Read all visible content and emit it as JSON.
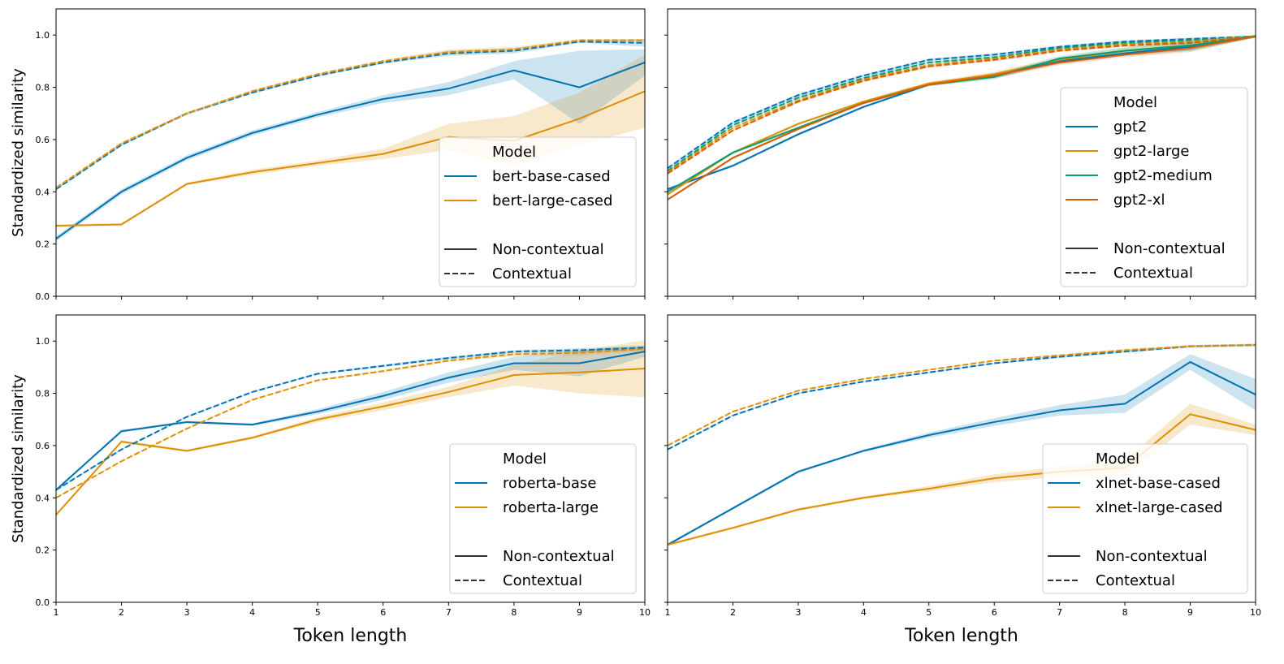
{
  "colors": {
    "blue": "#0173b2",
    "orange": "#de8f05",
    "green": "#029e73",
    "vermillion": "#d55e00"
  },
  "chart_data": [
    {
      "type": "line",
      "panel": "top-left",
      "ylabel": "Standardized similarity",
      "xlabel": "",
      "x": [
        1,
        2,
        3,
        4,
        5,
        6,
        7,
        8,
        9,
        10
      ],
      "xlim": [
        1,
        10
      ],
      "ylim": [
        0,
        1.1
      ],
      "yticks": [
        0.0,
        0.2,
        0.4,
        0.6,
        0.8,
        1.0
      ],
      "show_xtick_labels": false,
      "show_ytick_labels": true,
      "legend": {
        "title": "Model",
        "placement": "lower-right",
        "style_entries": [
          "Non-contextual",
          "Contextual"
        ]
      },
      "series": [
        {
          "name": "bert-base-cased",
          "style": "Non-contextual",
          "color": "#0173b2",
          "values": [
            0.22,
            0.4,
            0.53,
            0.625,
            0.695,
            0.755,
            0.795,
            0.865,
            0.8,
            0.895
          ],
          "ci": [
            0.01,
            0.01,
            0.01,
            0.01,
            0.01,
            0.015,
            0.025,
            0.035,
            0.14,
            0.05
          ]
        },
        {
          "name": "bert-large-cased",
          "style": "Non-contextual",
          "color": "#de8f05",
          "values": [
            0.27,
            0.275,
            0.43,
            0.475,
            0.51,
            0.545,
            0.61,
            0.595,
            0.68,
            0.785
          ],
          "ci": [
            0.005,
            0.005,
            0.005,
            0.01,
            0.01,
            0.02,
            0.05,
            0.095,
            0.1,
            0.14
          ]
        },
        {
          "name": "bert-base-cased",
          "style": "Contextual",
          "color": "#0173b2",
          "values": [
            0.41,
            0.58,
            0.7,
            0.78,
            0.845,
            0.895,
            0.93,
            0.94,
            0.975,
            0.97
          ],
          "ci": [
            0.005,
            0.005,
            0.005,
            0.005,
            0.005,
            0.005,
            0.01,
            0.01,
            0.005,
            0.015
          ]
        },
        {
          "name": "bert-large-cased",
          "style": "Contextual",
          "color": "#de8f05",
          "values": [
            0.415,
            0.585,
            0.7,
            0.785,
            0.85,
            0.9,
            0.935,
            0.945,
            0.98,
            0.98
          ],
          "ci": [
            0.005,
            0.005,
            0.005,
            0.005,
            0.005,
            0.005,
            0.01,
            0.01,
            0.005,
            0.005
          ]
        }
      ]
    },
    {
      "type": "line",
      "panel": "top-right",
      "ylabel": "",
      "xlabel": "",
      "x": [
        1,
        2,
        3,
        4,
        5,
        6,
        7,
        8,
        9,
        10
      ],
      "xlim": [
        1,
        10
      ],
      "ylim": [
        0,
        1.1
      ],
      "yticks": [
        0.0,
        0.2,
        0.4,
        0.6,
        0.8,
        1.0
      ],
      "show_xtick_labels": false,
      "show_ytick_labels": false,
      "legend": {
        "title": "Model",
        "placement": "lower-right",
        "style_entries": [
          "Non-contextual",
          "Contextual"
        ]
      },
      "series": [
        {
          "name": "gpt2",
          "style": "Non-contextual",
          "color": "#0173b2",
          "values": [
            0.41,
            0.5,
            0.62,
            0.725,
            0.81,
            0.845,
            0.9,
            0.93,
            0.955,
            0.995
          ],
          "ci": [
            0.005,
            0.005,
            0.005,
            0.005,
            0.005,
            0.01,
            0.01,
            0.01,
            0.015,
            0.005
          ]
        },
        {
          "name": "gpt2-large",
          "style": "Non-contextual",
          "color": "#de8f05",
          "values": [
            0.39,
            0.55,
            0.66,
            0.745,
            0.815,
            0.85,
            0.905,
            0.94,
            0.96,
            0.995
          ],
          "ci": [
            0.005,
            0.005,
            0.005,
            0.005,
            0.005,
            0.01,
            0.01,
            0.01,
            0.015,
            0.005
          ]
        },
        {
          "name": "gpt2-medium",
          "style": "Non-contextual",
          "color": "#029e73",
          "values": [
            0.4,
            0.55,
            0.645,
            0.74,
            0.81,
            0.84,
            0.91,
            0.94,
            0.96,
            0.995
          ],
          "ci": [
            0.005,
            0.005,
            0.005,
            0.005,
            0.005,
            0.01,
            0.01,
            0.015,
            0.02,
            0.005
          ]
        },
        {
          "name": "gpt2-xl",
          "style": "Non-contextual",
          "color": "#d55e00",
          "values": [
            0.37,
            0.53,
            0.64,
            0.74,
            0.81,
            0.845,
            0.895,
            0.925,
            0.95,
            0.995
          ],
          "ci": [
            0.005,
            0.005,
            0.005,
            0.005,
            0.005,
            0.01,
            0.01,
            0.01,
            0.015,
            0.005
          ]
        },
        {
          "name": "gpt2",
          "style": "Contextual",
          "color": "#0173b2",
          "values": [
            0.49,
            0.665,
            0.77,
            0.845,
            0.905,
            0.925,
            0.955,
            0.975,
            0.985,
            0.995
          ],
          "ci": [
            0.005,
            0.005,
            0.005,
            0.005,
            0.005,
            0.005,
            0.005,
            0.005,
            0.005,
            0.003
          ]
        },
        {
          "name": "gpt2-medium",
          "style": "Contextual",
          "color": "#029e73",
          "values": [
            0.48,
            0.655,
            0.76,
            0.835,
            0.895,
            0.915,
            0.95,
            0.97,
            0.98,
            0.995
          ],
          "ci": [
            0.005,
            0.005,
            0.005,
            0.005,
            0.005,
            0.005,
            0.005,
            0.005,
            0.005,
            0.003
          ]
        },
        {
          "name": "gpt2-large",
          "style": "Contextual",
          "color": "#de8f05",
          "values": [
            0.475,
            0.645,
            0.75,
            0.83,
            0.885,
            0.91,
            0.945,
            0.965,
            0.975,
            0.995
          ],
          "ci": [
            0.005,
            0.005,
            0.005,
            0.005,
            0.005,
            0.005,
            0.005,
            0.005,
            0.005,
            0.003
          ]
        },
        {
          "name": "gpt2-xl",
          "style": "Contextual",
          "color": "#d55e00",
          "values": [
            0.47,
            0.635,
            0.745,
            0.825,
            0.88,
            0.905,
            0.94,
            0.96,
            0.97,
            0.995
          ],
          "ci": [
            0.005,
            0.005,
            0.005,
            0.005,
            0.005,
            0.005,
            0.005,
            0.005,
            0.005,
            0.003
          ]
        }
      ]
    },
    {
      "type": "line",
      "panel": "bottom-left",
      "ylabel": "Standardized similarity",
      "xlabel": "Token length",
      "x": [
        1,
        2,
        3,
        4,
        5,
        6,
        7,
        8,
        9,
        10
      ],
      "xlim": [
        1,
        10
      ],
      "ylim": [
        0,
        1.1
      ],
      "yticks": [
        0.0,
        0.2,
        0.4,
        0.6,
        0.8,
        1.0
      ],
      "show_xtick_labels": true,
      "show_ytick_labels": true,
      "legend": {
        "title": "Model",
        "placement": "lower-right",
        "style_entries": [
          "Non-contextual",
          "Contextual"
        ]
      },
      "series": [
        {
          "name": "roberta-base",
          "style": "Non-contextual",
          "color": "#0173b2",
          "values": [
            0.43,
            0.655,
            0.69,
            0.68,
            0.73,
            0.79,
            0.86,
            0.915,
            0.915,
            0.96
          ],
          "ci": [
            0.005,
            0.005,
            0.005,
            0.005,
            0.01,
            0.015,
            0.02,
            0.025,
            0.05,
            0.02
          ]
        },
        {
          "name": "roberta-large",
          "style": "Non-contextual",
          "color": "#de8f05",
          "values": [
            0.335,
            0.615,
            0.58,
            0.63,
            0.7,
            0.75,
            0.805,
            0.87,
            0.88,
            0.895
          ],
          "ci": [
            0.005,
            0.005,
            0.005,
            0.005,
            0.01,
            0.015,
            0.02,
            0.04,
            0.08,
            0.11
          ]
        },
        {
          "name": "roberta-base",
          "style": "Contextual",
          "color": "#0173b2",
          "values": [
            0.43,
            0.585,
            0.71,
            0.805,
            0.875,
            0.905,
            0.935,
            0.96,
            0.965,
            0.975
          ],
          "ci": [
            0.003,
            0.003,
            0.003,
            0.003,
            0.003,
            0.005,
            0.005,
            0.005,
            0.008,
            0.008
          ]
        },
        {
          "name": "roberta-large",
          "style": "Contextual",
          "color": "#de8f05",
          "values": [
            0.4,
            0.54,
            0.665,
            0.775,
            0.85,
            0.885,
            0.925,
            0.95,
            0.955,
            0.97
          ],
          "ci": [
            0.003,
            0.003,
            0.003,
            0.003,
            0.003,
            0.005,
            0.005,
            0.008,
            0.01,
            0.01
          ]
        }
      ]
    },
    {
      "type": "line",
      "panel": "bottom-right",
      "ylabel": "",
      "xlabel": "Token length",
      "x": [
        1,
        2,
        3,
        4,
        5,
        6,
        7,
        8,
        9,
        10
      ],
      "xlim": [
        1,
        10
      ],
      "ylim": [
        0,
        1.1
      ],
      "yticks": [
        0.0,
        0.2,
        0.4,
        0.6,
        0.8,
        1.0
      ],
      "show_xtick_labels": true,
      "show_ytick_labels": false,
      "legend": {
        "title": "Model",
        "placement": "lower-right",
        "style_entries": [
          "Non-contextual",
          "Contextual"
        ]
      },
      "series": [
        {
          "name": "xlnet-base-cased",
          "style": "Non-contextual",
          "color": "#0173b2",
          "values": [
            0.22,
            0.36,
            0.5,
            0.58,
            0.64,
            0.69,
            0.735,
            0.76,
            0.92,
            0.795
          ],
          "ci": [
            0.005,
            0.005,
            0.005,
            0.005,
            0.01,
            0.015,
            0.02,
            0.035,
            0.03,
            0.06
          ]
        },
        {
          "name": "xlnet-large-cased",
          "style": "Non-contextual",
          "color": "#de8f05",
          "values": [
            0.22,
            0.285,
            0.355,
            0.4,
            0.435,
            0.475,
            0.5,
            0.515,
            0.72,
            0.66
          ],
          "ci": [
            0.005,
            0.005,
            0.005,
            0.005,
            0.01,
            0.015,
            0.02,
            0.03,
            0.04,
            0.02
          ]
        },
        {
          "name": "xlnet-base-cased",
          "style": "Contextual",
          "color": "#0173b2",
          "values": [
            0.585,
            0.715,
            0.8,
            0.845,
            0.88,
            0.915,
            0.94,
            0.96,
            0.98,
            0.985
          ],
          "ci": [
            0.003,
            0.003,
            0.003,
            0.003,
            0.003,
            0.003,
            0.005,
            0.005,
            0.005,
            0.005
          ]
        },
        {
          "name": "xlnet-large-cased",
          "style": "Contextual",
          "color": "#de8f05",
          "values": [
            0.6,
            0.73,
            0.81,
            0.855,
            0.89,
            0.925,
            0.945,
            0.965,
            0.98,
            0.985
          ],
          "ci": [
            0.003,
            0.003,
            0.003,
            0.003,
            0.003,
            0.003,
            0.005,
            0.005,
            0.005,
            0.005
          ]
        }
      ]
    }
  ]
}
